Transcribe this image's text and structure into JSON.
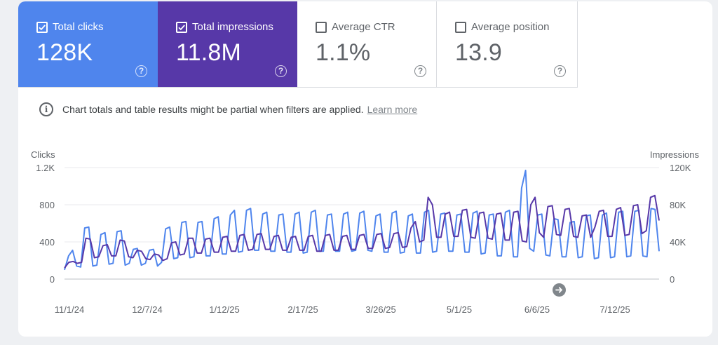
{
  "metrics": [
    {
      "label": "Total clicks",
      "value": "128K",
      "checked": true,
      "color": "#4f85ed"
    },
    {
      "label": "Total impressions",
      "value": "11.8M",
      "checked": true,
      "color": "#5738a8"
    },
    {
      "label": "Average CTR",
      "value": "1.1%",
      "checked": false
    },
    {
      "label": "Average position",
      "value": "13.9",
      "checked": false
    }
  ],
  "help_glyph": "?",
  "notice": {
    "icon": "info-icon",
    "icon_glyph": "i",
    "text": "Chart totals and table results might be partial when filters are applied.",
    "link": "Learn more"
  },
  "chart_data": {
    "type": "line",
    "left_axis": {
      "label": "Clicks",
      "ticks": [
        "1.2K",
        "800",
        "400",
        "0"
      ],
      "range": [
        0,
        1200
      ]
    },
    "right_axis": {
      "label": "Impressions",
      "ticks": [
        "120K",
        "80K",
        "40K",
        "0"
      ],
      "range": [
        0,
        120000
      ]
    },
    "x_tick_labels": [
      "11/1/24",
      "12/7/24",
      "1/12/25",
      "2/17/25",
      "3/26/25",
      "5/1/25",
      "6/6/25",
      "7/12/25"
    ],
    "x_range": [
      "11/1/24",
      "8/4/25"
    ],
    "grid": true,
    "series": [
      {
        "axis": "left",
        "color": "#4f85ed",
        "values": [
          100,
          250,
          310,
          140,
          130,
          550,
          560,
          140,
          150,
          480,
          500,
          160,
          170,
          510,
          520,
          150,
          170,
          320,
          330,
          150,
          170,
          310,
          320,
          140,
          180,
          540,
          560,
          220,
          230,
          610,
          620,
          230,
          240,
          610,
          620,
          250,
          250,
          650,
          670,
          270,
          270,
          690,
          740,
          290,
          300,
          740,
          760,
          310,
          310,
          700,
          720,
          300,
          300,
          690,
          700,
          290,
          290,
          700,
          720,
          280,
          290,
          720,
          740,
          300,
          300,
          690,
          700,
          300,
          300,
          700,
          720,
          300,
          310,
          710,
          730,
          310,
          300,
          680,
          700,
          290,
          290,
          710,
          730,
          280,
          290,
          680,
          700,
          280,
          280,
          720,
          740,
          290,
          300,
          700,
          710,
          300,
          300,
          690,
          700,
          290,
          290,
          710,
          730,
          270,
          280,
          690,
          700,
          250,
          250,
          720,
          740,
          240,
          240,
          980,
          1170,
          330,
          300,
          690,
          700,
          260,
          250,
          650,
          640,
          240,
          240,
          610,
          620,
          230,
          240,
          680,
          690,
          220,
          230,
          690,
          710,
          230,
          240,
          720,
          730,
          240,
          250,
          730,
          740,
          250,
          240,
          760,
          750,
          300
        ]
      },
      {
        "axis": "right",
        "color": "#5738a8",
        "values": [
          12000,
          18000,
          19000,
          17000,
          18000,
          44000,
          43000,
          23000,
          24000,
          36000,
          37000,
          25000,
          25000,
          42000,
          41000,
          24000,
          23000,
          31000,
          30000,
          22000,
          21000,
          27000,
          26000,
          20000,
          22000,
          39000,
          40000,
          26000,
          27000,
          44000,
          44000,
          28000,
          28000,
          43000,
          44000,
          29000,
          29000,
          45000,
          46000,
          30000,
          30000,
          47000,
          48000,
          31000,
          32000,
          48000,
          49000,
          32000,
          32000,
          46000,
          47000,
          31000,
          31000,
          45000,
          46000,
          31000,
          31000,
          46000,
          47000,
          30000,
          30000,
          47000,
          48000,
          31000,
          31000,
          46000,
          47000,
          32000,
          32000,
          47000,
          48000,
          33000,
          33000,
          48000,
          49000,
          33000,
          34000,
          49000,
          50000,
          34000,
          35000,
          55000,
          62000,
          40000,
          42000,
          88000,
          80000,
          45000,
          45000,
          70000,
          72000,
          46000,
          46000,
          74000,
          75000,
          45000,
          44000,
          71000,
          72000,
          44000,
          43000,
          70000,
          71000,
          42000,
          42000,
          72000,
          73000,
          41000,
          40000,
          80000,
          88000,
          50000,
          45000,
          78000,
          79000,
          48000,
          47000,
          75000,
          76000,
          46000,
          45000,
          68000,
          69000,
          45000,
          56000,
          73000,
          74000,
          46000,
          46000,
          75000,
          77000,
          47000,
          48000,
          79000,
          80000,
          49000,
          52000,
          88000,
          90000,
          63000
        ]
      }
    ]
  }
}
